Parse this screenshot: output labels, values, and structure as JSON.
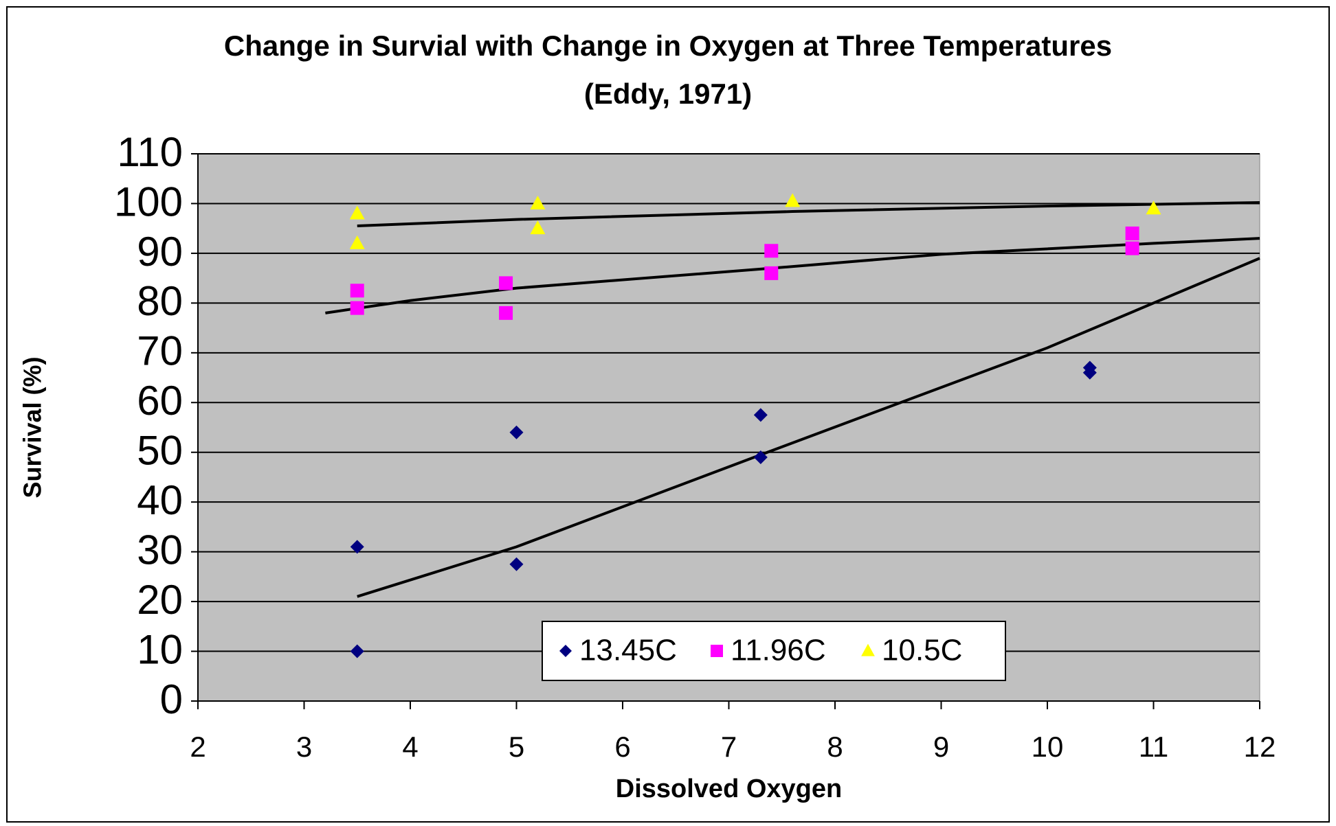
{
  "chart_data": {
    "type": "scatter",
    "title": "Change in Survial with Change in Oxygen at Three Temperatures (Eddy, 1971)",
    "xlabel": "Dissolved Oxygen",
    "ylabel": "Survival (%)",
    "xlim": [
      2,
      12
    ],
    "xticks": [
      2,
      3,
      4,
      5,
      6,
      7,
      8,
      9,
      10,
      11,
      12
    ],
    "ylim": [
      0,
      110
    ],
    "yticks": [
      0,
      10,
      20,
      30,
      40,
      50,
      60,
      70,
      80,
      90,
      100,
      110
    ],
    "grid": true,
    "legend": "bottom",
    "series": [
      {
        "name": "13.45C",
        "color": "#000080",
        "marker": "diamond",
        "x": [
          3.5,
          3.5,
          5,
          5,
          7.3,
          7.3,
          10.4,
          10.4
        ],
        "values": [
          31,
          10,
          54,
          27.5,
          57.5,
          49,
          67,
          66
        ],
        "trendline": {
          "x": [
            3.5,
            5,
            7.3,
            10,
            12
          ],
          "values": [
            21,
            31,
            49.5,
            71,
            89
          ]
        }
      },
      {
        "name": "11.96C",
        "color": "#ff00ff",
        "marker": "square",
        "x": [
          3.5,
          3.5,
          4.9,
          4.9,
          7.4,
          7.4,
          10.8,
          10.8
        ],
        "values": [
          82.5,
          79,
          84,
          78,
          90.5,
          86,
          94,
          91
        ],
        "trendline": {
          "x": [
            3.2,
            4,
            5,
            7.4,
            9,
            11,
            12
          ],
          "values": [
            78,
            80.5,
            83,
            87,
            89.8,
            92,
            93
          ]
        }
      },
      {
        "name": "10.5C",
        "color": "#ffff00",
        "marker": "triangle",
        "x": [
          3.5,
          3.5,
          5.2,
          5.2,
          7.6,
          11
        ],
        "values": [
          98,
          92,
          100,
          95,
          100.5,
          99
        ],
        "trendline": {
          "x": [
            3.5,
            5,
            7.6,
            10,
            12
          ],
          "values": [
            95.5,
            96.8,
            98.4,
            99.5,
            100.2
          ]
        }
      }
    ]
  }
}
